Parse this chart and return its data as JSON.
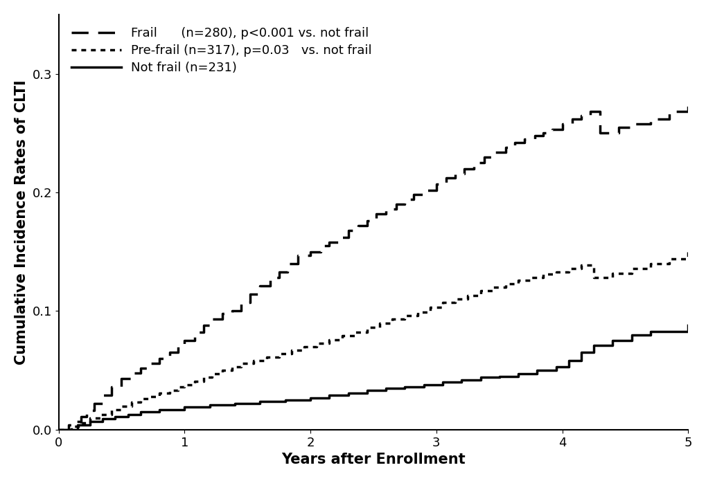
{
  "title": "",
  "xlabel": "Years after Enrollment",
  "ylabel": "Cumulative Incidence Rates of CLTI",
  "xlim": [
    0,
    5
  ],
  "ylim": [
    0,
    0.35
  ],
  "yticks": [
    0.0,
    0.1,
    0.2,
    0.3
  ],
  "xticks": [
    0,
    1,
    2,
    3,
    4,
    5
  ],
  "background_color": "#ffffff",
  "frail": {
    "label": "Frail      (n=280), p<0.001 vs. not frail",
    "linewidth": 2.5,
    "color": "#000000",
    "x": [
      0,
      0.08,
      0.12,
      0.18,
      0.22,
      0.28,
      0.35,
      0.42,
      0.5,
      0.58,
      0.65,
      0.72,
      0.8,
      0.88,
      0.95,
      1.0,
      1.08,
      1.15,
      1.22,
      1.3,
      1.38,
      1.45,
      1.52,
      1.6,
      1.68,
      1.75,
      1.82,
      1.9,
      2.0,
      2.08,
      2.15,
      2.22,
      2.3,
      2.38,
      2.45,
      2.52,
      2.6,
      2.68,
      2.75,
      2.82,
      2.9,
      3.0,
      3.08,
      3.15,
      3.22,
      3.3,
      3.38,
      3.45,
      3.55,
      3.62,
      3.7,
      3.78,
      3.85,
      3.92,
      4.0,
      4.08,
      4.15,
      4.22,
      4.3,
      4.45,
      4.55,
      4.7,
      4.85,
      5.0
    ],
    "y": [
      0,
      0.004,
      0.007,
      0.011,
      0.016,
      0.022,
      0.029,
      0.036,
      0.043,
      0.048,
      0.052,
      0.056,
      0.06,
      0.065,
      0.071,
      0.075,
      0.082,
      0.088,
      0.093,
      0.098,
      0.1,
      0.107,
      0.114,
      0.121,
      0.128,
      0.133,
      0.14,
      0.147,
      0.15,
      0.155,
      0.158,
      0.162,
      0.168,
      0.172,
      0.176,
      0.182,
      0.186,
      0.19,
      0.194,
      0.198,
      0.202,
      0.207,
      0.212,
      0.216,
      0.22,
      0.225,
      0.23,
      0.234,
      0.238,
      0.242,
      0.245,
      0.248,
      0.25,
      0.253,
      0.258,
      0.262,
      0.265,
      0.268,
      0.25,
      0.255,
      0.258,
      0.262,
      0.268,
      0.275
    ]
  },
  "prefrail": {
    "label": "Pre-frail (n=317), p=0.03   vs. not frail",
    "linewidth": 2.5,
    "color": "#000000",
    "x": [
      0,
      0.1,
      0.18,
      0.25,
      0.33,
      0.42,
      0.5,
      0.58,
      0.65,
      0.72,
      0.8,
      0.88,
      0.95,
      1.0,
      1.08,
      1.15,
      1.22,
      1.3,
      1.38,
      1.45,
      1.55,
      1.65,
      1.75,
      1.85,
      1.95,
      2.05,
      2.15,
      2.25,
      2.35,
      2.45,
      2.55,
      2.65,
      2.75,
      2.85,
      2.95,
      3.05,
      3.15,
      3.25,
      3.35,
      3.45,
      3.55,
      3.65,
      3.75,
      3.85,
      3.95,
      4.05,
      4.15,
      4.25,
      4.4,
      4.55,
      4.7,
      4.85,
      5.0
    ],
    "y": [
      0,
      0.003,
      0.006,
      0.01,
      0.013,
      0.017,
      0.02,
      0.023,
      0.026,
      0.028,
      0.031,
      0.033,
      0.036,
      0.038,
      0.041,
      0.044,
      0.047,
      0.05,
      0.053,
      0.056,
      0.058,
      0.061,
      0.064,
      0.067,
      0.07,
      0.073,
      0.076,
      0.079,
      0.082,
      0.086,
      0.09,
      0.093,
      0.096,
      0.099,
      0.103,
      0.107,
      0.11,
      0.113,
      0.117,
      0.12,
      0.123,
      0.126,
      0.128,
      0.131,
      0.133,
      0.136,
      0.139,
      0.128,
      0.132,
      0.136,
      0.14,
      0.144,
      0.15
    ]
  },
  "notfrail": {
    "label": "Not frail (n=231)",
    "linewidth": 2.5,
    "color": "#000000",
    "x": [
      0,
      0.15,
      0.25,
      0.35,
      0.45,
      0.55,
      0.65,
      0.8,
      1.0,
      1.2,
      1.4,
      1.6,
      1.8,
      2.0,
      2.15,
      2.3,
      2.45,
      2.6,
      2.75,
      2.9,
      3.05,
      3.2,
      3.35,
      3.5,
      3.65,
      3.8,
      3.95,
      4.05,
      4.15,
      4.25,
      4.4,
      4.55,
      4.7,
      5.0
    ],
    "y": [
      0,
      0.004,
      0.007,
      0.009,
      0.011,
      0.013,
      0.015,
      0.017,
      0.019,
      0.021,
      0.022,
      0.024,
      0.025,
      0.027,
      0.029,
      0.031,
      0.033,
      0.035,
      0.036,
      0.038,
      0.04,
      0.042,
      0.044,
      0.045,
      0.047,
      0.05,
      0.053,
      0.058,
      0.065,
      0.071,
      0.075,
      0.08,
      0.083,
      0.088
    ]
  },
  "legend_fontsize": 13,
  "axis_fontsize": 15,
  "tick_fontsize": 13
}
